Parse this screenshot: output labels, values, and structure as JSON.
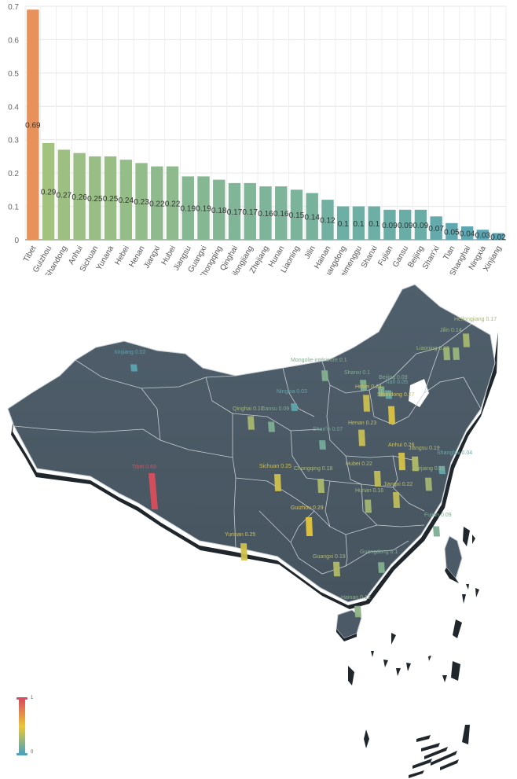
{
  "chart_data": [
    {
      "type": "bar",
      "categories": [
        "Tibet",
        "Guizhou",
        "Shandong",
        "Anhui",
        "Sichuan",
        "Yunana",
        "Hebei",
        "Henan",
        "Jiangxi",
        "Hubei",
        "Jiangsu",
        "Guangxi",
        "Chongqing",
        "Qinghai",
        "Heilongjiang",
        "Zhejiang",
        "Hunan",
        "Liaoning",
        "Jilin",
        "Hainan",
        "Guangdong",
        "Neimenggu",
        "Shanxi",
        "Fujian",
        "Gansu",
        "Beijing",
        "Shan'xi",
        "Tian",
        "Shanghai",
        "Ningxia",
        "Xinjiang"
      ],
      "values": [
        0.69,
        0.29,
        0.27,
        0.26,
        0.25,
        0.25,
        0.24,
        0.23,
        0.22,
        0.22,
        0.19,
        0.19,
        0.18,
        0.17,
        0.17,
        0.16,
        0.16,
        0.15,
        0.14,
        0.12,
        0.1,
        0.1,
        0.1,
        0.09,
        0.09,
        0.09,
        0.07,
        0.05,
        0.04,
        0.03,
        0.02
      ],
      "data_labels": [
        "0.69",
        "0.29",
        "0.27",
        "0.26",
        "0.25",
        "0.25",
        "0.24",
        "0.23",
        "0.22",
        "0.22",
        "0.19",
        "0.19",
        "0.18",
        "0.17",
        "0.17",
        "0.16",
        "0.16",
        "0.15",
        "0.14",
        "0.12",
        "0.1",
        "0.1",
        "0.1",
        "0.09",
        "0.09",
        "0.09",
        "0.07",
        "0.05",
        "0.04",
        "0.03",
        "0.02"
      ],
      "ylim": [
        0,
        0.7
      ],
      "y_ticks": [
        "0",
        "0.1",
        "0.2",
        "0.3",
        "0.4",
        "0.5",
        "0.6",
        "0.7"
      ],
      "grid": true,
      "colors": {
        "high": "#e8915a",
        "mid": "#a6c37c",
        "low": "#50a3ba"
      }
    },
    {
      "type": "map",
      "region": "China",
      "colors": {
        "land": "#4b5a66",
        "border": "#c8ced4",
        "min": "#50a3ba",
        "mid": "#eac736",
        "max": "#d94e5d"
      },
      "visual_range": {
        "min": "0",
        "max": "1"
      },
      "labels": [
        {
          "text": "Heilongjiang 0.17",
          "value": 0.17
        },
        {
          "text": "Jilin 0.14",
          "value": 0.14
        },
        {
          "text": "Liaoning 0.15",
          "value": 0.15
        },
        {
          "text": "Xinjiang 0.02",
          "value": 0.02
        },
        {
          "text": "Mongolie-intérieure 0.1",
          "value": 0.1
        },
        {
          "text": "Ningxia 0.03",
          "value": 0.03
        },
        {
          "text": "Qinghai 0.17",
          "value": 0.17
        },
        {
          "text": "Gansu 0.09",
          "value": 0.09
        },
        {
          "text": "Hebei 0.24",
          "value": 0.24
        },
        {
          "text": "Beijing 0.09",
          "value": 0.09
        },
        {
          "text": "Tian 0.05",
          "value": 0.05
        },
        {
          "text": "Shanxi 0.1",
          "value": 0.1
        },
        {
          "text": "Shandong 0.27",
          "value": 0.27
        },
        {
          "text": "Henan 0.23",
          "value": 0.23
        },
        {
          "text": "Shan'xi 0.07",
          "value": 0.07
        },
        {
          "text": "Tibet 0.69",
          "value": 0.69
        },
        {
          "text": "Sichuan 0.25",
          "value": 0.25
        },
        {
          "text": "Chongqing 0.18",
          "value": 0.18
        },
        {
          "text": "Hubei 0.22",
          "value": 0.22
        },
        {
          "text": "Anhui 0.26",
          "value": 0.26
        },
        {
          "text": "Jiangsu 0.19",
          "value": 0.19
        },
        {
          "text": "Shanghai 0.04",
          "value": 0.04
        },
        {
          "text": "Zhejiang 0.16",
          "value": 0.16
        },
        {
          "text": "Hunan 0.16",
          "value": 0.16
        },
        {
          "text": "Jiangxi 0.22",
          "value": 0.22
        },
        {
          "text": "Guizhou 0.29",
          "value": 0.29
        },
        {
          "text": "Yunnan 0.25",
          "value": 0.25
        },
        {
          "text": "Guangxi 0.19",
          "value": 0.19
        },
        {
          "text": "Guangdong 0.1",
          "value": 0.1
        },
        {
          "text": "Fujian 0.09",
          "value": 0.09
        },
        {
          "text": "Hainan 0.12",
          "value": 0.12
        }
      ]
    }
  ]
}
